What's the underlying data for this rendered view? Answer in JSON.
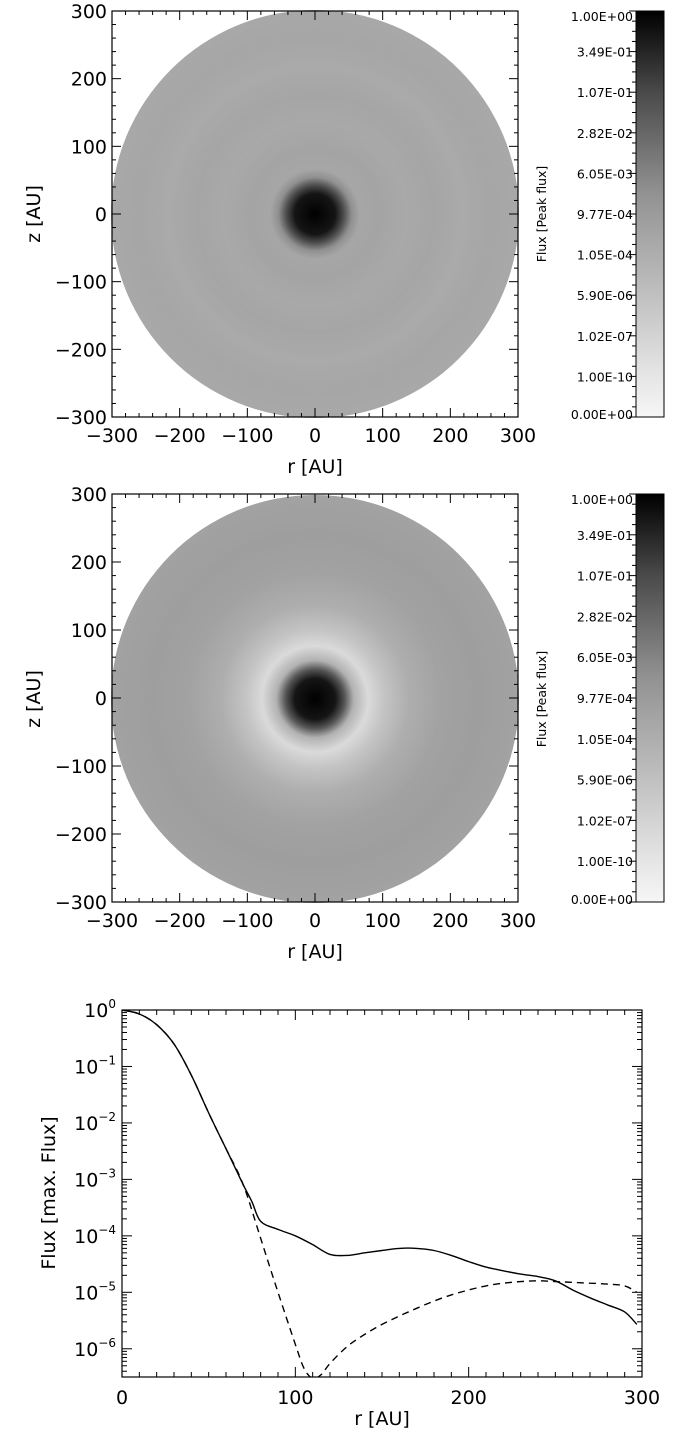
{
  "chart_data": [
    {
      "type": "heatmap",
      "panel": "top",
      "xlabel": "r  [AU]",
      "ylabel": "z  [AU]",
      "xlim": [
        -300,
        300
      ],
      "ylim": [
        -300,
        300
      ],
      "x_ticks": [
        "−300",
        "−200",
        "−100",
        "0",
        "100",
        "200",
        "300"
      ],
      "y_ticks": [
        "300",
        "200",
        "100",
        "0",
        "−100",
        "−200",
        "−300"
      ],
      "colorbar": {
        "label": "Flux  [Peak flux]",
        "tick_labels": [
          "1.00E+00",
          "3.49E-01",
          "1.07E-01",
          "2.82E-02",
          "6.05E-03",
          "9.77E-04",
          "1.05E-04",
          "5.90E-06",
          "1.02E-07",
          "1.00E-10",
          "0.00E+00"
        ]
      },
      "disk_radius_au": 300,
      "core_radius_au": 45,
      "background_level": "uniform gray with faint concentric rings"
    },
    {
      "type": "heatmap",
      "panel": "middle",
      "xlabel": "r  [AU]",
      "ylabel": "z  [AU]",
      "xlim": [
        -300,
        300
      ],
      "ylim": [
        -300,
        300
      ],
      "x_ticks": [
        "−300",
        "−200",
        "−100",
        "0",
        "100",
        "200",
        "300"
      ],
      "y_ticks": [
        "300",
        "200",
        "100",
        "0",
        "−100",
        "−200",
        "−300"
      ],
      "colorbar": {
        "label": "Flux  [Peak flux]",
        "tick_labels": [
          "1.00E+00",
          "3.49E-01",
          "1.07E-01",
          "2.82E-02",
          "6.05E-03",
          "9.77E-04",
          "1.05E-04",
          "5.90E-06",
          "1.02E-07",
          "1.00E-10",
          "0.00E+00"
        ]
      },
      "disk_radius_au": 300,
      "core_radius_au": 45,
      "light_ring_radius_au": 110
    },
    {
      "type": "line",
      "panel": "bottom",
      "xlabel": "r  [AU]",
      "ylabel": "Flux [max. Flux]",
      "xlim": [
        0,
        300
      ],
      "ylim_log10": [
        -6.5,
        0
      ],
      "y_scale": "log",
      "x_ticks": [
        "0",
        "100",
        "200",
        "300"
      ],
      "y_ticks": [
        {
          "base": "10",
          "exp": "0",
          "log10": 0
        },
        {
          "base": "10",
          "exp": "−1",
          "log10": -1
        },
        {
          "base": "10",
          "exp": "−2",
          "log10": -2
        },
        {
          "base": "10",
          "exp": "−3",
          "log10": -3
        },
        {
          "base": "10",
          "exp": "−4",
          "log10": -4
        },
        {
          "base": "10",
          "exp": "−5",
          "log10": -5
        },
        {
          "base": "10",
          "exp": "−6",
          "log10": -6
        }
      ],
      "series": [
        {
          "style": "solid",
          "x": [
            0,
            10,
            20,
            30,
            40,
            50,
            60,
            70,
            75,
            80,
            90,
            100,
            110,
            120,
            130,
            140,
            150,
            160,
            170,
            180,
            190,
            200,
            210,
            220,
            230,
            240,
            250,
            260,
            270,
            280,
            290,
            297
          ],
          "y": [
            1.0,
            0.85,
            0.55,
            0.25,
            0.07,
            0.015,
            0.0035,
            0.0008,
            0.0004,
            0.00018,
            0.00013,
            0.0001,
            7e-05,
            4.7e-05,
            4.5e-05,
            5e-05,
            5.5e-05,
            6e-05,
            6e-05,
            5.5e-05,
            4.5e-05,
            3.5e-05,
            2.8e-05,
            2.4e-05,
            2.1e-05,
            1.9e-05,
            1.6e-05,
            1.1e-05,
            8e-06,
            6e-06,
            4.5e-06,
            2.7e-06
          ]
        },
        {
          "style": "dashed",
          "x": [
            0,
            10,
            20,
            30,
            40,
            50,
            60,
            70,
            80,
            90,
            100,
            105,
            110,
            115,
            120,
            130,
            140,
            150,
            160,
            170,
            180,
            190,
            200,
            210,
            220,
            230,
            240,
            250,
            260,
            270,
            280,
            290,
            297
          ],
          "y": [
            1.0,
            0.85,
            0.55,
            0.25,
            0.07,
            0.015,
            0.0035,
            0.0008,
            9e-05,
            1e-05,
            1.2e-06,
            4.5e-07,
            3e-07,
            3.5e-07,
            5.5e-07,
            1.1e-06,
            1.8e-06,
            2.7e-06,
            3.8e-06,
            5.2e-06,
            7e-06,
            9e-06,
            1.1e-05,
            1.3e-05,
            1.45e-05,
            1.55e-05,
            1.6e-05,
            1.55e-05,
            1.5e-05,
            1.45e-05,
            1.4e-05,
            1.3e-05,
            1e-05
          ]
        }
      ]
    }
  ]
}
